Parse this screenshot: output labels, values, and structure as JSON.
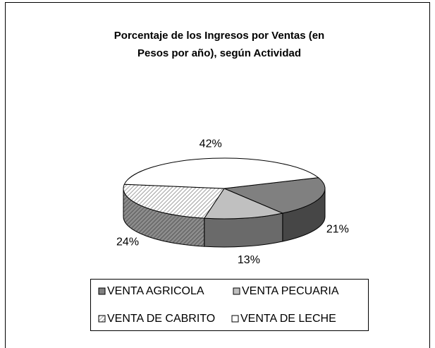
{
  "chart_data": {
    "type": "pie",
    "title": "Porcentaje de los Ingresos por Ventas (en Pesos por año), según Actividad",
    "categories": [
      "VENTA AGRICOLA",
      "VENTA PECUARIA",
      "VENTA DE CABRITO",
      "VENTA DE LECHE"
    ],
    "values": [
      21,
      13,
      24,
      42
    ],
    "value_labels": [
      "21%",
      "13%",
      "24%",
      "42%"
    ],
    "colors": [
      "#808080",
      "#c0c0c0",
      "#ffffff",
      "#ffffff"
    ],
    "hatched": [
      false,
      false,
      true,
      false
    ],
    "legend": "bottom"
  }
}
